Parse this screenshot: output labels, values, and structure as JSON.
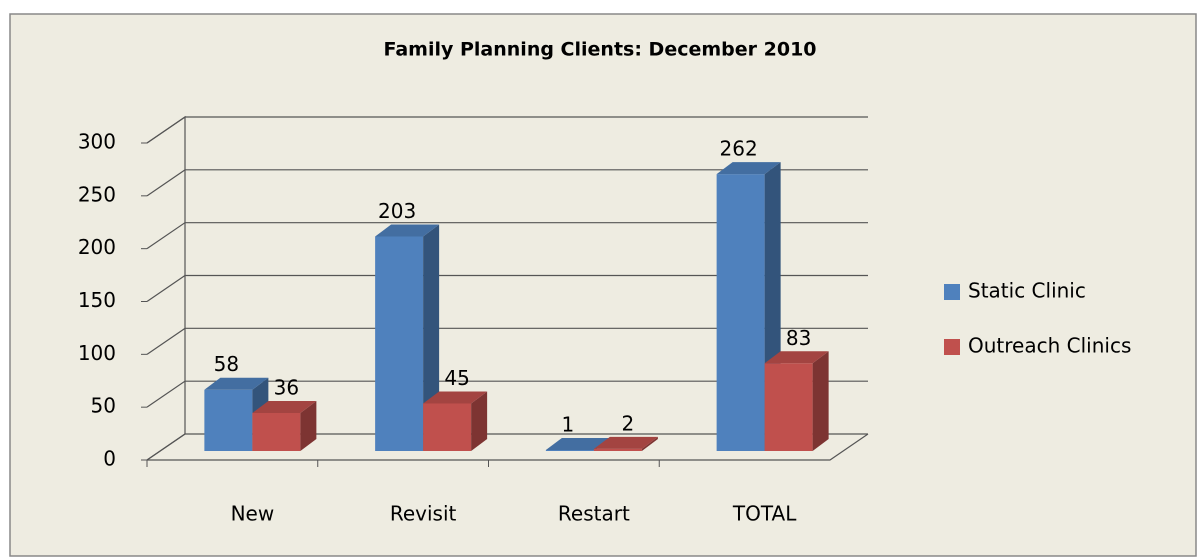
{
  "chart_data": {
    "type": "bar3d",
    "title": "Family Planning  Clients: December 2010",
    "categories": [
      "New",
      "Revisit",
      "Restart",
      "TOTAL"
    ],
    "series": [
      {
        "name": "Static Clinic",
        "color": "#4f81bd",
        "values": [
          58,
          203,
          1,
          262
        ]
      },
      {
        "name": "Outreach Clinics",
        "color": "#c0504d",
        "values": [
          36,
          45,
          2,
          83
        ]
      }
    ],
    "ylim": [
      0,
      300
    ],
    "yticks": [
      0,
      50,
      100,
      150,
      200,
      250,
      300
    ],
    "grid": true,
    "legend": "right"
  }
}
